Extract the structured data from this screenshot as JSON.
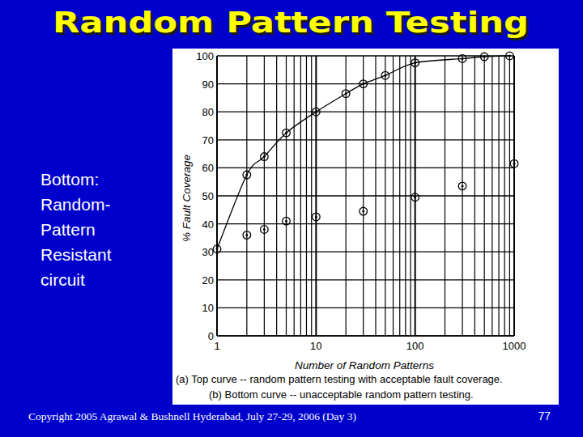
{
  "slide": {
    "title": "Random Pattern Testing",
    "side_text": [
      "Bottom:",
      "Random-",
      "Pattern",
      "Resistant",
      "circuit"
    ],
    "footer": "Copyright 2005 Agrawal & Bushnell  Hyderabad, July 27-29, 2006 (Day 3)",
    "page_number": 77
  },
  "chart_data": {
    "type": "scatter",
    "xlabel": "Number of Random Patterns",
    "ylabel": "% Fault Coverage",
    "annotations": [
      "(a) Top curve -- random pattern testing with acceptable fault coverage.",
      "(b) Bottom curve -- unacceptable random pattern testing."
    ],
    "series": [
      {
        "color": "#000000",
        "marker": "circle",
        "line_style": "solid",
        "x": [
          1,
          2,
          3,
          5,
          10,
          20,
          30,
          50,
          100,
          300,
          500,
          900
        ],
        "values": [
          31,
          57.5,
          64,
          72.5,
          80,
          86.5,
          90,
          93,
          97.5,
          99,
          99.7,
          100
        ]
      },
      {
        "color": "#000000",
        "marker": "circle",
        "line_style": "none",
        "x": [
          2,
          3,
          5,
          10,
          30,
          100,
          300,
          1000
        ],
        "values": [
          36,
          38,
          41,
          42.5,
          44.5,
          49.5,
          53.5,
          61.5
        ]
      }
    ],
    "xlim": [
      1,
      1000
    ],
    "xticks": [
      1,
      10,
      100,
      1000
    ],
    "ylim": [
      0,
      100
    ],
    "yticks": [
      0,
      10,
      20,
      30,
      40,
      50,
      60,
      70,
      80,
      90,
      100
    ],
    "log": "x",
    "grid": true
  }
}
